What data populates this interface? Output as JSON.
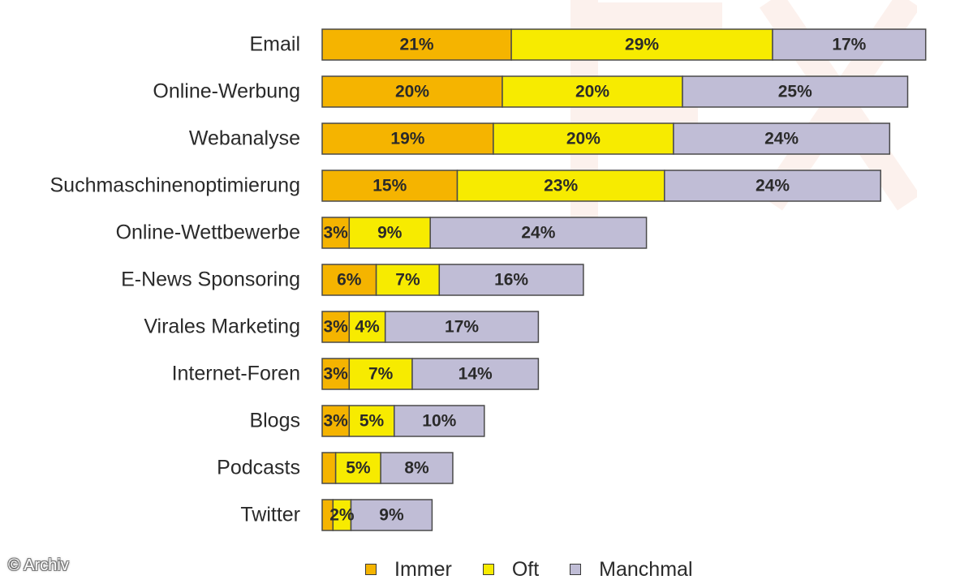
{
  "chart_data": {
    "type": "bar",
    "orientation": "horizontal",
    "stacked": true,
    "categories": [
      "Email",
      "Online-Werbung",
      "Webanalyse",
      "Suchmaschinenoptimierung",
      "Online-Wettbewerbe",
      "E-News Sponsoring",
      "Virales Marketing",
      "Internet-Foren",
      "Blogs",
      "Podcasts",
      "Twitter"
    ],
    "series": [
      {
        "name": "Immer",
        "color": "#f5b400",
        "values": [
          21,
          20,
          19,
          15,
          3,
          6,
          3,
          3,
          3,
          1.5,
          1.2
        ],
        "labels": [
          "21%",
          "20%",
          "19%",
          "15%",
          "3%",
          "6%",
          "3%",
          "3%",
          "3%",
          "",
          ""
        ]
      },
      {
        "name": "Oft",
        "color": "#f7eb00",
        "values": [
          29,
          20,
          20,
          23,
          9,
          7,
          4,
          7,
          5,
          5,
          2
        ],
        "labels": [
          "29%",
          "20%",
          "20%",
          "23%",
          "9%",
          "7%",
          "4%",
          "7%",
          "5%",
          "5%",
          "2%"
        ]
      },
      {
        "name": "Manchmal",
        "color": "#c0bdd6",
        "values": [
          17,
          25,
          24,
          24,
          24,
          16,
          17,
          14,
          10,
          8,
          9
        ],
        "labels": [
          "17%",
          "25%",
          "24%",
          "24%",
          "24%",
          "16%",
          "17%",
          "14%",
          "10%",
          "8%",
          "9%"
        ]
      }
    ],
    "title": "",
    "xlabel": "",
    "ylabel": "",
    "legend_position": "bottom",
    "grid": false
  },
  "credit": "© Archiv"
}
